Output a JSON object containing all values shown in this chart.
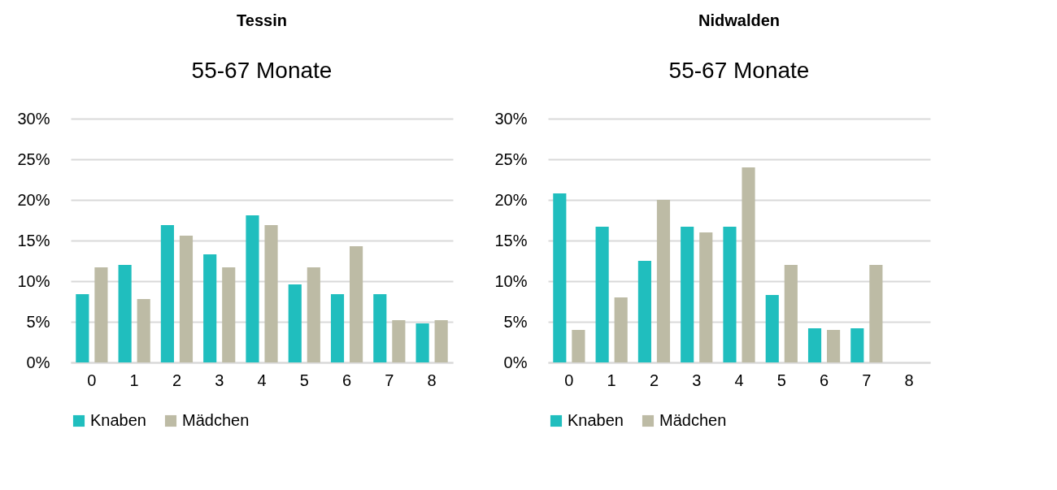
{
  "chart_data": [
    {
      "type": "bar",
      "title": "Tessin",
      "subtitle": "55-67 Monate",
      "categories": [
        "0",
        "1",
        "2",
        "3",
        "4",
        "5",
        "6",
        "7",
        "8"
      ],
      "series": [
        {
          "name": "Knaben",
          "color": "#20bebe",
          "values": [
            8.4,
            12.0,
            16.9,
            13.3,
            18.1,
            9.6,
            8.4,
            8.4,
            4.8
          ]
        },
        {
          "name": "Mädchen",
          "color": "#bdbba5",
          "values": [
            11.7,
            7.8,
            15.6,
            11.7,
            16.9,
            11.7,
            14.3,
            5.2,
            5.2
          ]
        }
      ],
      "ylim": [
        0,
        30
      ],
      "yticks": [
        {
          "value": 0,
          "label": "0%"
        },
        {
          "value": 5,
          "label": "5%"
        },
        {
          "value": 10,
          "label": "10%"
        },
        {
          "value": 15,
          "label": "15%"
        },
        {
          "value": 20,
          "label": "20%"
        },
        {
          "value": 25,
          "label": "25%"
        },
        {
          "value": 30,
          "label": "30%"
        }
      ],
      "grid": "y",
      "legend": "bottom"
    },
    {
      "type": "bar",
      "title": "Nidwalden",
      "subtitle": "55-67 Monate",
      "categories": [
        "0",
        "1",
        "2",
        "3",
        "4",
        "5",
        "6",
        "7",
        "8"
      ],
      "series": [
        {
          "name": "Knaben",
          "color": "#20bebe",
          "values": [
            20.8,
            16.7,
            12.5,
            16.7,
            16.7,
            8.3,
            4.2,
            4.2,
            null
          ]
        },
        {
          "name": "Mädchen",
          "color": "#bdbba5",
          "values": [
            4,
            8,
            20,
            16,
            24,
            12,
            4,
            12,
            null
          ]
        }
      ],
      "ylim": [
        0,
        30
      ],
      "yticks": [
        {
          "value": 0,
          "label": "0%"
        },
        {
          "value": 5,
          "label": "5%"
        },
        {
          "value": 10,
          "label": "10%"
        },
        {
          "value": 15,
          "label": "15%"
        },
        {
          "value": 20,
          "label": "20%"
        },
        {
          "value": 25,
          "label": "25%"
        },
        {
          "value": 30,
          "label": "30%"
        }
      ],
      "grid": "y",
      "legend": "bottom"
    }
  ]
}
